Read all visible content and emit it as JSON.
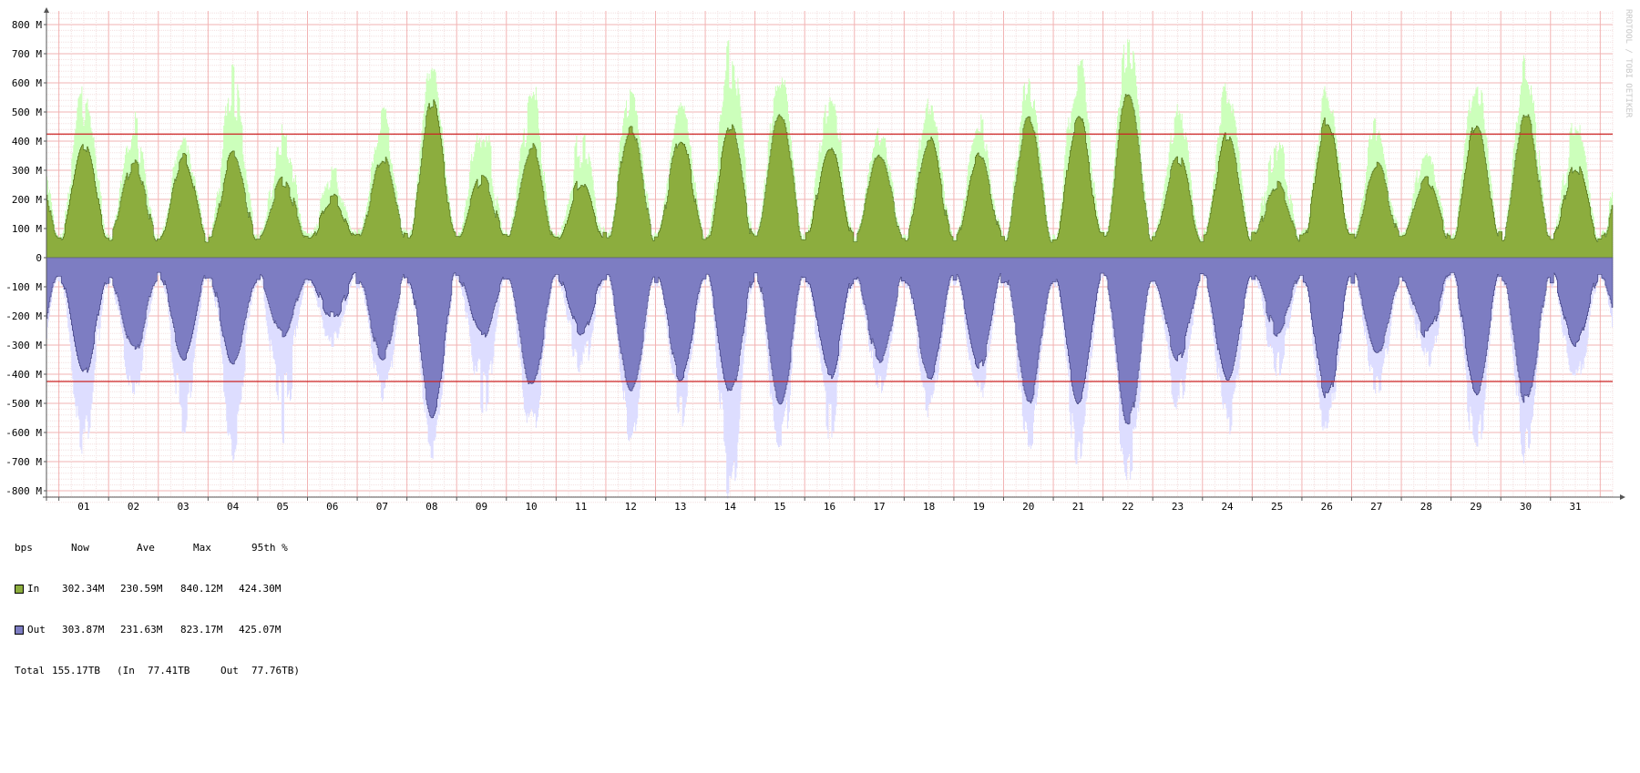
{
  "watermark": "RRDTOOL / TOBI OETIKER",
  "chart_data": {
    "type": "area",
    "ylabel_unit": "bps",
    "ylim": [
      -840,
      840
    ],
    "y_ticks": [
      {
        "value": 800,
        "label": "800 M"
      },
      {
        "value": 700,
        "label": "700 M"
      },
      {
        "value": 600,
        "label": "600 M"
      },
      {
        "value": 500,
        "label": "500 M"
      },
      {
        "value": 400,
        "label": "400 M"
      },
      {
        "value": 300,
        "label": "300 M"
      },
      {
        "value": 200,
        "label": "200 M"
      },
      {
        "value": 100,
        "label": "100 M"
      },
      {
        "value": 0,
        "label": "0"
      },
      {
        "value": -100,
        "label": "-100 M"
      },
      {
        "value": -200,
        "label": "-200 M"
      },
      {
        "value": -300,
        "label": "-300 M"
      },
      {
        "value": -400,
        "label": "-400 M"
      },
      {
        "value": -500,
        "label": "-500 M"
      },
      {
        "value": -600,
        "label": "-600 M"
      },
      {
        "value": -700,
        "label": "-700 M"
      },
      {
        "value": -800,
        "label": "-800 M"
      }
    ],
    "x_days": [
      "01",
      "02",
      "03",
      "04",
      "05",
      "06",
      "07",
      "08",
      "09",
      "10",
      "11",
      "12",
      "13",
      "14",
      "15",
      "16",
      "17",
      "18",
      "19",
      "20",
      "21",
      "22",
      "23",
      "24",
      "25",
      "26",
      "27",
      "28",
      "29",
      "30",
      "31"
    ],
    "percentile_lines": [
      424.3,
      -425.07
    ],
    "daily_peak": {
      "in_avg": [
        390,
        320,
        340,
        350,
        260,
        200,
        340,
        530,
        270,
        380,
        260,
        450,
        410,
        450,
        490,
        390,
        350,
        400,
        360,
        480,
        480,
        570,
        340,
        420,
        250,
        470,
        320,
        260,
        460,
        490,
        310
      ],
      "in_max": [
        650,
        470,
        430,
        660,
        450,
        300,
        520,
        680,
        510,
        600,
        430,
        620,
        550,
        840,
        680,
        620,
        440,
        570,
        520,
        660,
        720,
        790,
        510,
        610,
        420,
        610,
        490,
        400,
        680,
        700,
        470
      ],
      "out_avg": [
        390,
        320,
        340,
        360,
        260,
        200,
        340,
        530,
        270,
        450,
        260,
        450,
        410,
        460,
        490,
        400,
        350,
        410,
        370,
        490,
        490,
        560,
        340,
        420,
        250,
        480,
        320,
        260,
        460,
        490,
        300
      ],
      "out_max": [
        690,
        480,
        610,
        680,
        620,
        310,
        520,
        690,
        570,
        650,
        440,
        630,
        560,
        840,
        680,
        620,
        450,
        580,
        520,
        680,
        730,
        800,
        510,
        620,
        430,
        620,
        490,
        400,
        690,
        700,
        470
      ]
    },
    "series": [
      {
        "name": "In",
        "color_avg": "#8cad3e",
        "color_max": "#ccffbb"
      },
      {
        "name": "Out",
        "color_avg": "#7d7dc2",
        "color_max": "#ddddff"
      }
    ]
  },
  "legend": {
    "header": [
      "bps",
      "Now",
      "Ave",
      "Max",
      "95th %"
    ],
    "rows": [
      {
        "label": "In",
        "color": "#8cad3e",
        "now": "302.34M",
        "ave": "230.59M",
        "max": "840.12M",
        "p95": "424.30M"
      },
      {
        "label": "Out",
        "color": "#7d7dc2",
        "now": "303.87M",
        "ave": "231.63M",
        "max": "823.17M",
        "p95": "425.07M"
      }
    ],
    "total": {
      "label": "Total",
      "value": "155.17TB",
      "in_text": "(In",
      "in_value": "77.41TB",
      "out_text": "Out",
      "out_value": "77.76TB)"
    }
  }
}
